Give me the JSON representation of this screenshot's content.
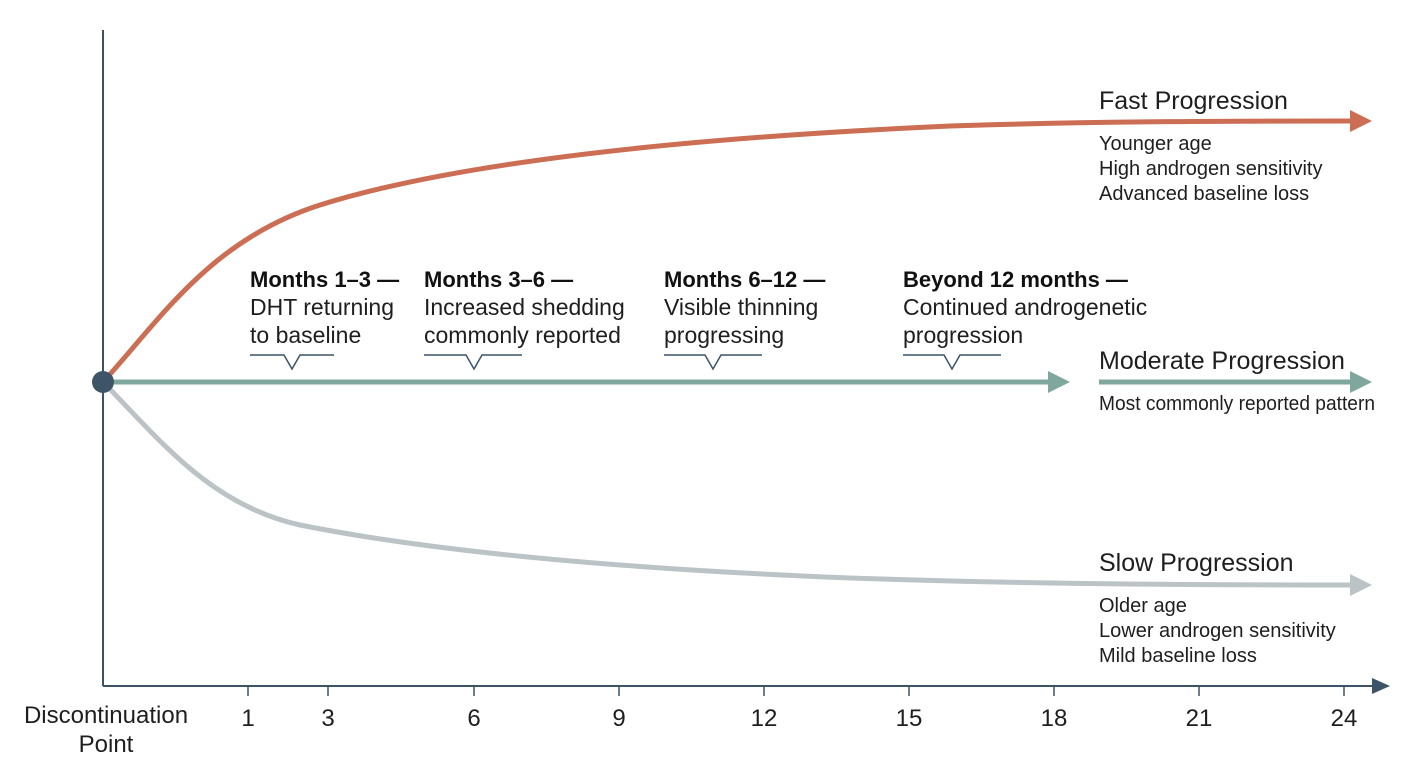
{
  "colors": {
    "axis": "#3c5368",
    "fast": "#cc6e54",
    "moderate": "#7fa79e",
    "slow": "#bcc3c6",
    "origin": "#3e5568",
    "bracket": "#3c5368"
  },
  "x_axis": {
    "origin_label_line1": "Discontinuation",
    "origin_label_line2": "Point",
    "ticks": [
      {
        "value": 1,
        "label": "1"
      },
      {
        "value": 3,
        "label": "3"
      },
      {
        "value": 6,
        "label": "6"
      },
      {
        "value": 9,
        "label": "9"
      },
      {
        "value": 12,
        "label": "12"
      },
      {
        "value": 15,
        "label": "15"
      },
      {
        "value": 18,
        "label": "18"
      },
      {
        "value": 21,
        "label": "21"
      },
      {
        "value": 24,
        "label": "24"
      }
    ]
  },
  "phases": [
    {
      "head": "Months 1–3 —",
      "lines": [
        "DHT returning",
        "to baseline"
      ]
    },
    {
      "head": "Months 3–6 —",
      "lines": [
        "Increased shedding",
        "commonly reported"
      ]
    },
    {
      "head": "Months 6–12 —",
      "lines": [
        "Visible thinning",
        "progressing"
      ]
    },
    {
      "head": "Beyond 12 months —",
      "lines": [
        "Continued androgenetic",
        "progression"
      ]
    }
  ],
  "trajectories": {
    "fast": {
      "title": "Fast Progression",
      "notes": [
        "Younger age",
        "High androgen sensitivity",
        "Advanced baseline loss"
      ]
    },
    "moderate": {
      "title": "Moderate Progression",
      "notes": [
        "Most commonly reported pattern"
      ]
    },
    "slow": {
      "title": "Slow Progression",
      "notes": [
        "Older age",
        "Lower androgen sensitivity",
        "Mild baseline loss"
      ]
    }
  }
}
